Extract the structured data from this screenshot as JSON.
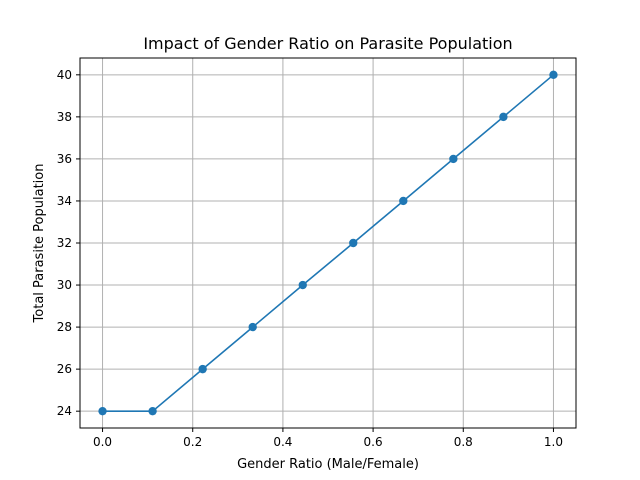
{
  "chart_data": {
    "type": "line",
    "title": "Impact of Gender Ratio on Parasite Population",
    "xlabel": "Gender Ratio (Male/Female)",
    "ylabel": "Total Parasite Population",
    "x": [
      0.0,
      0.111,
      0.222,
      0.333,
      0.444,
      0.556,
      0.667,
      0.778,
      0.889,
      1.0
    ],
    "series": [
      {
        "values": [
          24,
          24,
          26,
          28,
          30,
          32,
          34,
          36,
          38,
          40
        ]
      }
    ],
    "xlim": [
      -0.05,
      1.05
    ],
    "ylim": [
      23.2,
      40.8
    ],
    "x_ticks": [
      "0.0",
      "0.2",
      "0.4",
      "0.6",
      "0.8",
      "1.0"
    ],
    "y_ticks": [
      "24",
      "26",
      "28",
      "30",
      "32",
      "34",
      "36",
      "38",
      "40"
    ],
    "grid": true,
    "marker": "circle",
    "colors": {
      "line": "#1f77b4",
      "grid": "#b0b0b0",
      "axes": "#000000"
    }
  }
}
